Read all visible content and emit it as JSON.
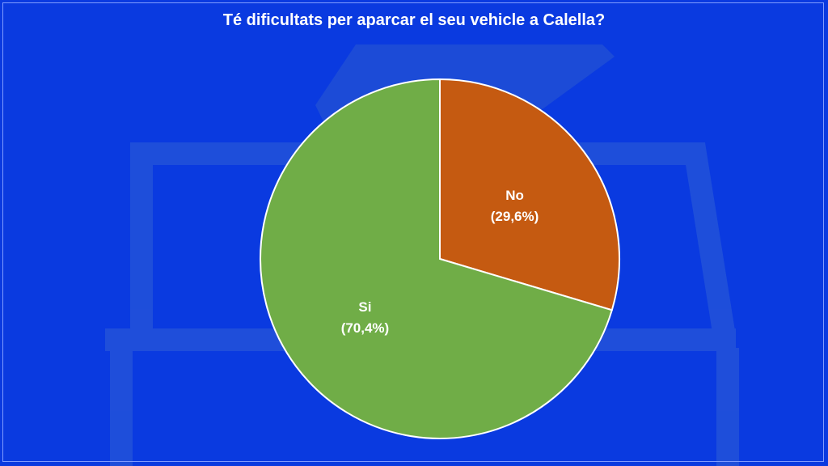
{
  "chart_data": {
    "type": "pie",
    "title": "Té dificultats per aparcar el seu vehicle a Calella?",
    "slices": [
      {
        "label": "No",
        "value": 29.6,
        "pct_label": "(29,6%)",
        "color": "#c55a11"
      },
      {
        "label": "Si",
        "value": 70.4,
        "pct_label": "(70,4%)",
        "color": "#70ad47"
      }
    ],
    "start_angle_deg": 0,
    "direction": "clockwise",
    "legend": "none"
  },
  "colors": {
    "background": "#0a3ae0",
    "ballot_box": "#1f4fd6",
    "title_text": "#ffffff"
  }
}
